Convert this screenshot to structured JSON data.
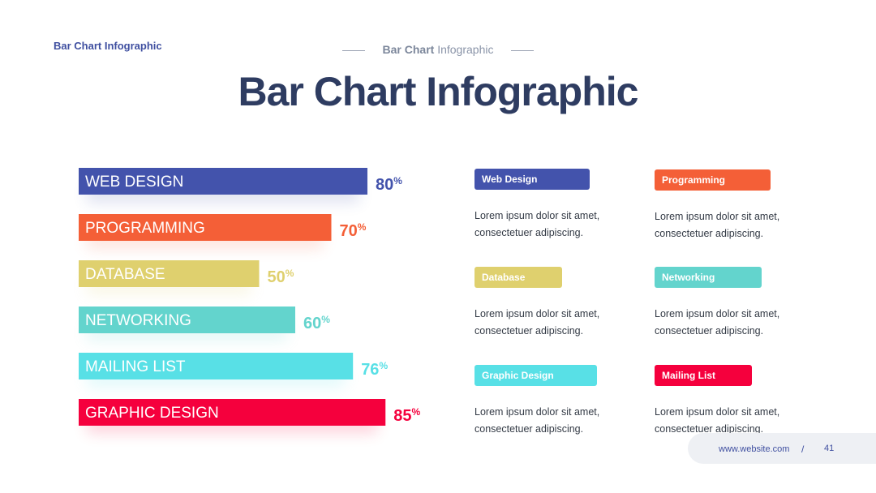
{
  "header": {
    "corner_title": "Bar Chart  Infographic",
    "subheading_strong": "Bar Chart",
    "subheading_rest": " Infographic",
    "title": "Bar Chart Infographic"
  },
  "chart_data": {
    "type": "bar",
    "orientation": "horizontal",
    "categories": [
      "WEB DESIGN",
      "PROGRAMMING",
      "DATABASE",
      "NETWORKING",
      "MAILING LIST",
      "GRAPHIC DESIGN"
    ],
    "values": [
      80,
      70,
      50,
      60,
      76,
      85
    ],
    "value_suffix": "%",
    "colors": [
      "#4353ac",
      "#f45f37",
      "#dfd06e",
      "#63d4cd",
      "#58e0e6",
      "#f5003d"
    ]
  },
  "cards": [
    {
      "label": "Web Design",
      "color": "#4353ac",
      "desc1": "Lorem ipsum dolor sit amet,",
      "desc2": "consectetuer adipiscing."
    },
    {
      "label": "Programming",
      "color": "#f45f37",
      "desc1": "Lorem ipsum dolor sit amet,",
      "desc2": "consectetuer adipiscing."
    },
    {
      "label": "Database",
      "color": "#dfd06e",
      "desc1": "Lorem ipsum dolor sit amet,",
      "desc2": "consectetuer adipiscing."
    },
    {
      "label": "Networking",
      "color": "#63d4cd",
      "desc1": "Lorem ipsum dolor sit amet,",
      "desc2": "consectetuer adipiscing."
    },
    {
      "label": "Graphic Design",
      "color": "#58e0e6",
      "desc1": "Lorem ipsum dolor sit amet,",
      "desc2": "consectetuer adipiscing."
    },
    {
      "label": "Mailing List",
      "color": "#f5003d",
      "desc1": "Lorem ipsum dolor sit amet,",
      "desc2": "consectetuer adipiscing."
    }
  ],
  "footer": {
    "website": "www.website.com",
    "separator": "/",
    "page_number": "41"
  }
}
